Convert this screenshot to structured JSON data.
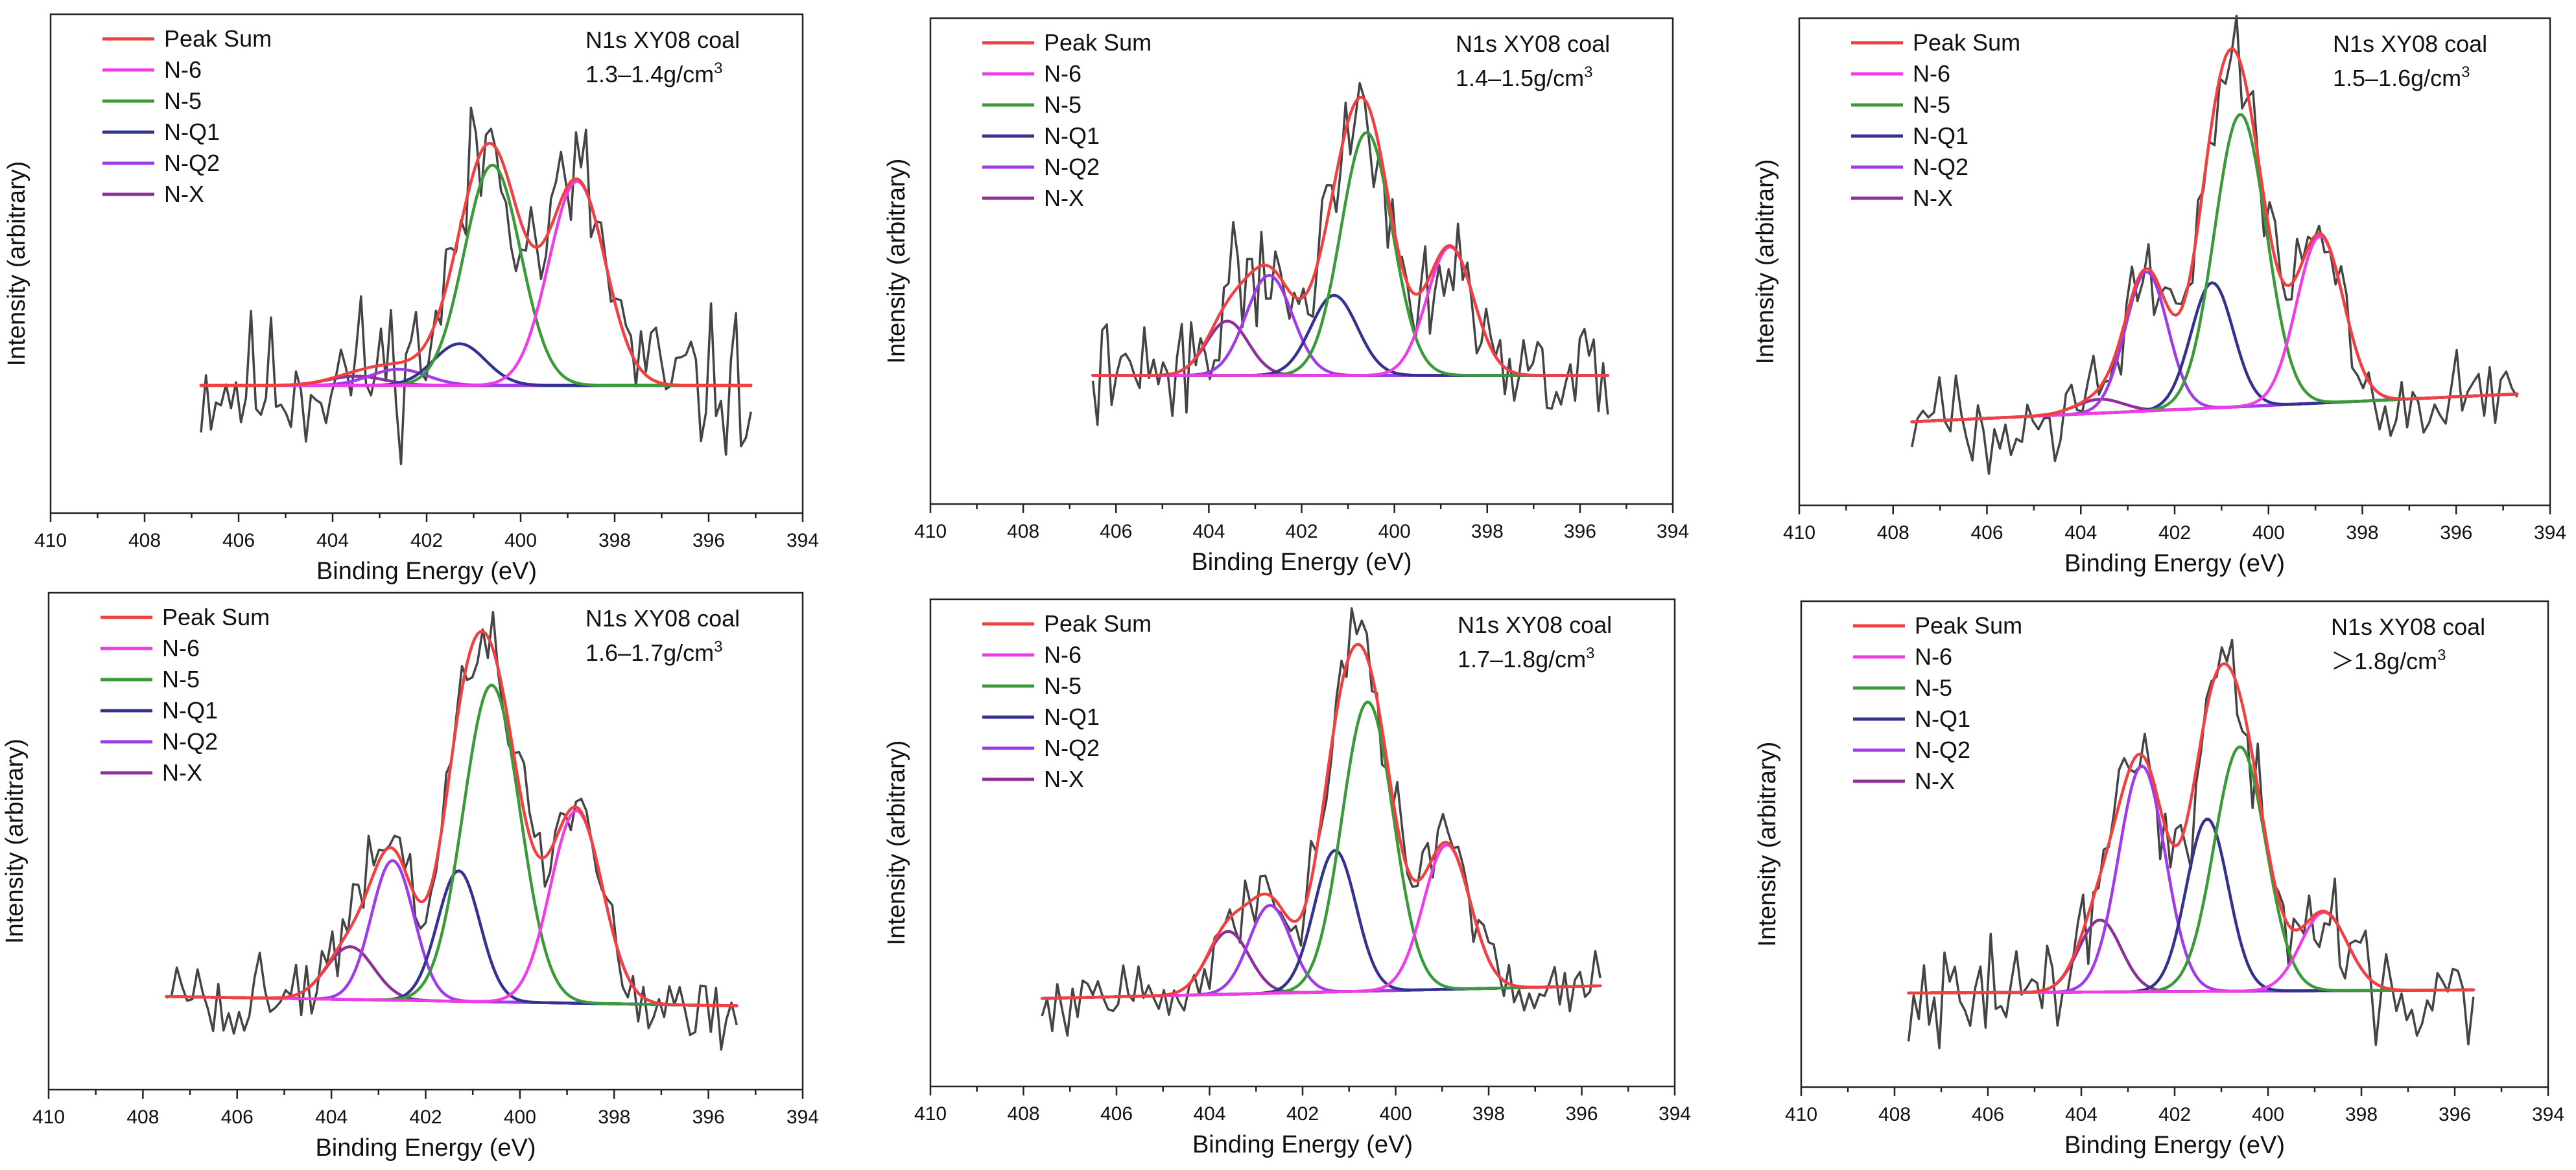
{
  "chart_data": [
    {
      "type": "line",
      "title": "N1s XY08 coal",
      "density_label": "1.3–1.4g/cm",
      "density_sup": "3",
      "xlabel": "Binding Energy (eV)",
      "ylabel": "Intensity (arbitrary)",
      "xlim": [
        410,
        394
      ],
      "x_ticks": [
        410,
        408,
        406,
        404,
        402,
        400,
        398,
        396,
        394
      ],
      "x_range": [
        406.8,
        395.1
      ],
      "baseline": [
        0.0,
        0.0
      ],
      "ylim": [
        -0.55,
        1.6
      ],
      "peaks": {
        "N6": [
          398.8,
          0.88,
          0.6
        ],
        "N5": [
          400.6,
          0.95,
          0.6
        ],
        "NQ1": [
          401.3,
          0.18,
          0.55
        ],
        "NQ2": [
          402.6,
          0.07,
          0.6
        ],
        "NX": [
          403.5,
          0.04,
          0.6
        ]
      },
      "noise": 0.2,
      "seed": 11
    },
    {
      "type": "line",
      "title": "N1s XY08 coal",
      "density_label": "1.4–1.5g/cm",
      "density_sup": "3",
      "xlabel": "Binding Energy (eV)",
      "ylabel": "Intensity (arbitrary)",
      "xlim": [
        410,
        394
      ],
      "x_ticks": [
        410,
        408,
        406,
        404,
        402,
        400,
        398,
        396,
        394
      ],
      "x_range": [
        406.5,
        395.4
      ],
      "baseline": [
        0.0,
        0.0
      ],
      "ylim": [
        -0.45,
        1.25
      ],
      "peaks": {
        "N6": [
          398.8,
          0.45,
          0.5
        ],
        "N5": [
          400.6,
          0.85,
          0.55
        ],
        "NQ1": [
          401.3,
          0.28,
          0.5
        ],
        "NQ2": [
          402.7,
          0.35,
          0.5
        ],
        "NX": [
          403.6,
          0.19,
          0.45
        ]
      },
      "noise": 0.12,
      "seed": 22
    },
    {
      "type": "line",
      "title": "N1s XY08 coal",
      "density_label": "1.5–1.6g/cm",
      "density_sup": "3",
      "xlabel": "Binding Energy (eV)",
      "ylabel": "Intensity (arbitrary)",
      "xlim": [
        410,
        394
      ],
      "x_ticks": [
        410,
        408,
        406,
        404,
        402,
        400,
        398,
        396,
        394
      ],
      "x_range": [
        407.6,
        394.7
      ],
      "baseline": [
        0.0,
        0.1
      ],
      "ylim": [
        -0.3,
        1.45
      ],
      "peaks": {
        "N6": [
          398.9,
          0.6,
          0.5
        ],
        "N5": [
          400.6,
          1.05,
          0.55
        ],
        "NQ1": [
          401.2,
          0.45,
          0.45
        ],
        "NQ2": [
          402.6,
          0.5,
          0.45
        ],
        "NX": [
          403.6,
          0.05,
          0.5
        ]
      },
      "noise": 0.1,
      "seed": 33
    },
    {
      "type": "line",
      "title": "N1s XY08 coal",
      "density_label": "1.6–1.7g/cm",
      "density_sup": "3",
      "xlabel": "Binding Energy (eV)",
      "ylabel": "Intensity (arbitrary)",
      "xlim": [
        410,
        394
      ],
      "x_ticks": [
        410,
        408,
        406,
        404,
        402,
        400,
        398,
        396,
        394
      ],
      "x_range": [
        407.5,
        395.4
      ],
      "baseline": [
        0.0,
        -0.03
      ],
      "ylim": [
        -0.3,
        1.3
      ],
      "peaks": {
        "N6": [
          398.8,
          0.62,
          0.55
        ],
        "N5": [
          400.6,
          1.02,
          0.6
        ],
        "NQ1": [
          401.3,
          0.42,
          0.45
        ],
        "NQ2": [
          402.7,
          0.45,
          0.45
        ],
        "NX": [
          403.6,
          0.17,
          0.5
        ]
      },
      "noise": 0.09,
      "seed": 44
    },
    {
      "type": "line",
      "title": "N1s XY08 coal",
      "density_label": "1.7–1.8g/cm",
      "density_sup": "3",
      "xlabel": "Binding Energy (eV)",
      "ylabel": "Intensity (arbitrary)",
      "xlim": [
        410,
        394
      ],
      "x_ticks": [
        410,
        408,
        406,
        404,
        402,
        400,
        398,
        396,
        394
      ],
      "x_range": [
        407.6,
        395.6
      ],
      "baseline": [
        -0.02,
        0.02
      ],
      "ylim": [
        -0.3,
        1.25
      ],
      "peaks": {
        "N6": [
          398.9,
          0.46,
          0.5
        ],
        "N5": [
          400.6,
          0.92,
          0.55
        ],
        "NQ1": [
          401.3,
          0.45,
          0.45
        ],
        "NQ2": [
          402.7,
          0.28,
          0.45
        ],
        "NX": [
          403.6,
          0.2,
          0.45
        ]
      },
      "noise": 0.07,
      "seed": 55
    },
    {
      "type": "line",
      "title": "N1s XY08 coal",
      "density_label": "＞1.8g/cm",
      "density_sup": "3",
      "xlabel": "Binding Energy (eV)",
      "ylabel": "Intensity (arbitrary)",
      "xlim": [
        410,
        394
      ],
      "x_ticks": [
        410,
        408,
        406,
        404,
        402,
        400,
        398,
        396,
        394
      ],
      "x_range": [
        407.7,
        395.6
      ],
      "baseline": [
        0.0,
        0.01
      ],
      "ylim": [
        -0.3,
        1.25
      ],
      "peaks": {
        "N6": [
          398.8,
          0.25,
          0.5
        ],
        "N5": [
          400.6,
          0.78,
          0.55
        ],
        "NQ1": [
          401.3,
          0.55,
          0.45
        ],
        "NQ2": [
          402.7,
          0.72,
          0.5
        ],
        "NX": [
          403.6,
          0.23,
          0.45
        ]
      },
      "noise": 0.1,
      "seed": 66
    }
  ],
  "legend": [
    {
      "key": "sum",
      "label": "Peak Sum",
      "color": "#f04040"
    },
    {
      "key": "N6",
      "label": "N-6",
      "color": "#ee3ce6"
    },
    {
      "key": "N5",
      "label": "N-5",
      "color": "#3a9a3a"
    },
    {
      "key": "NQ1",
      "label": "N-Q1",
      "color": "#33338f"
    },
    {
      "key": "NQ2",
      "label": "N-Q2",
      "color": "#9f3be8"
    },
    {
      "key": "NX",
      "label": "N-X",
      "color": "#8f2f9a"
    }
  ],
  "colors": {
    "raw": "#444444",
    "baseline": "#6a1b9a",
    "frame": "#222222"
  }
}
